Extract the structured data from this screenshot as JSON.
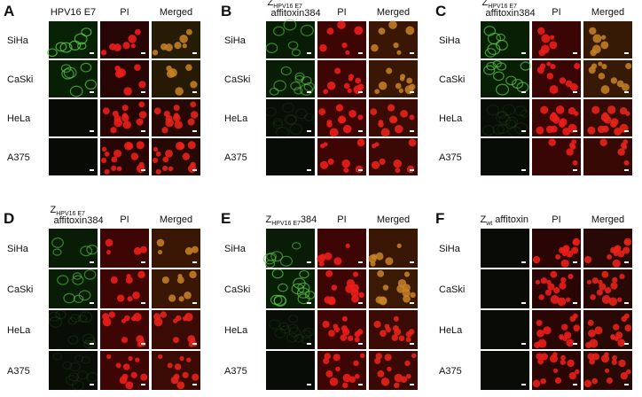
{
  "panels": [
    {
      "letter": "A",
      "stain_label": "HPV16 E7",
      "columns": [
        "PI",
        "Merged"
      ],
      "rows": [
        "SiHa",
        "CaSki",
        "HeLa",
        "A375"
      ]
    },
    {
      "letter": "B",
      "stain_label": {
        "main": "Z",
        "sub": "HPV16 E7",
        "suffix": "affitoxin384"
      },
      "columns": [
        "PI",
        "Merged"
      ],
      "rows": [
        "SiHa",
        "CaSki",
        "HeLa",
        "A375"
      ]
    },
    {
      "letter": "C",
      "stain_label": {
        "main": "Z",
        "sub": "HPV16 E7",
        "suffix": "affitoxin384"
      },
      "columns": [
        "PI",
        "Merged"
      ],
      "rows": [
        "SiHa",
        "CaSki",
        "HeLa",
        "A375"
      ]
    },
    {
      "letter": "D",
      "stain_label": {
        "main": "Z",
        "sub": "HPV16 E7",
        "suffix": "affitoxin384"
      },
      "columns": [
        "PI",
        "Merged"
      ],
      "rows": [
        "SiHa",
        "CaSki",
        "HeLa",
        "A375"
      ]
    },
    {
      "letter": "E",
      "stain_label": {
        "main": "Z",
        "sub": "HPV16 E7",
        "suffix": "384"
      },
      "columns": [
        "PI",
        "Merged"
      ],
      "rows": [
        "SiHa",
        "CaSki",
        "HeLa",
        "A375"
      ]
    },
    {
      "letter": "F",
      "stain_label": {
        "main": "Z",
        "sub": "wt",
        "suffix": " affitoxin"
      },
      "columns": [
        "PI",
        "Merged"
      ],
      "rows": [
        "SiHa",
        "CaSki",
        "HeLa",
        "A375"
      ]
    }
  ]
}
